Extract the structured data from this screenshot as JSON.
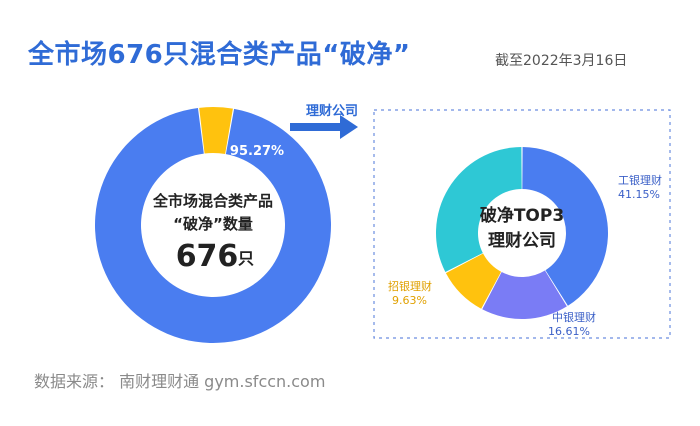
{
  "title": "全市场676只混合类产品“破净”",
  "date_note": "截至2022年3月16日",
  "source": "数据来源：  南财理财通  gym.sfccn.com",
  "arrow_label": "理财公司",
  "colors": {
    "title_blue": "#2f6bd6",
    "main_blue": "#4a7df0",
    "yellow": "#ffc20e",
    "teal": "#2ec8d5",
    "purple": "#7a7cf5"
  },
  "chart_data": [
    {
      "type": "pie",
      "variant": "donut",
      "center_text": [
        "全市场混合类产品",
        "“破净”数量"
      ],
      "center_value": "676",
      "center_unit": "只",
      "slices": [
        {
          "label": "",
          "value": 95.27,
          "value_label": "95.27%",
          "color": "#4a7df0"
        },
        {
          "label": "",
          "value": 4.73,
          "value_label": "",
          "color": "#ffc20e"
        }
      ]
    },
    {
      "type": "pie",
      "variant": "donut",
      "center_text": [
        "破净TOP3",
        "理财公司"
      ],
      "slices": [
        {
          "label": "工银理财",
          "value": 41.15,
          "value_label": "41.15%",
          "color": "#4a7df0"
        },
        {
          "label": "中银理财",
          "value": 16.61,
          "value_label": "16.61%",
          "color": "#7a7cf5"
        },
        {
          "label": "招银理财",
          "value": 9.63,
          "value_label": "9.63%",
          "color": "#ffc20e"
        },
        {
          "label": "",
          "value": 32.61,
          "value_label": "",
          "color": "#2ec8d5"
        }
      ]
    }
  ]
}
